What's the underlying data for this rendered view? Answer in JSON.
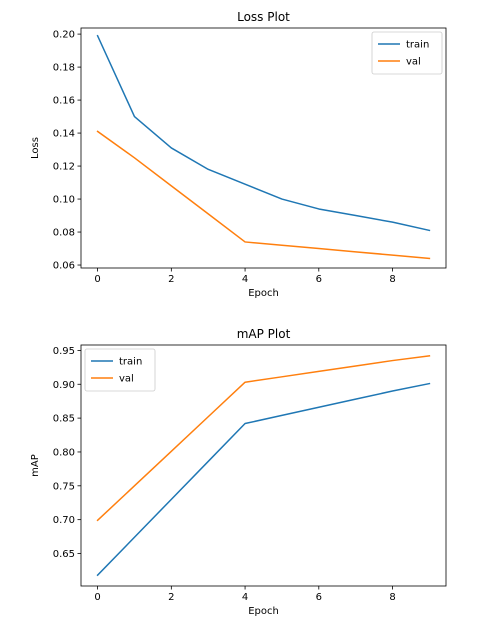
{
  "colors": {
    "train": "#1f77b4",
    "val": "#ff7f0e",
    "axes": "#000000",
    "legend_border": "#cccccc"
  },
  "chart_data": [
    {
      "type": "line",
      "title": "Loss Plot",
      "xlabel": "Epoch",
      "ylabel": "Loss",
      "x": [
        0,
        1,
        2,
        3,
        4,
        5,
        6,
        7,
        8,
        9
      ],
      "xlim": [
        -0.45,
        9.45
      ],
      "ylim": [
        0.0582,
        0.2037
      ],
      "xticks": [
        0,
        2,
        4,
        6,
        8
      ],
      "xtick_labels": [
        "0",
        "2",
        "4",
        "6",
        "8"
      ],
      "yticks": [
        0.06,
        0.08,
        0.1,
        0.12,
        0.14,
        0.16,
        0.18,
        0.2
      ],
      "ytick_labels": [
        "0.06",
        "0.08",
        "0.10",
        "0.12",
        "0.14",
        "0.16",
        "0.18",
        "0.20"
      ],
      "legend_position": "upper-right",
      "grid": false,
      "series": [
        {
          "name": "train",
          "values": [
            0.199,
            0.15,
            0.131,
            0.118,
            0.109,
            0.1,
            0.094,
            0.09,
            0.086,
            0.081
          ]
        },
        {
          "name": "val",
          "values": [
            0.141,
            0.125,
            0.108,
            0.091,
            0.074,
            0.072,
            0.07,
            0.068,
            0.066,
            0.064
          ]
        }
      ]
    },
    {
      "type": "line",
      "title": "mAP Plot",
      "xlabel": "Epoch",
      "ylabel": "mAP",
      "x": [
        0,
        1,
        2,
        3,
        4,
        5,
        6,
        7,
        8,
        9
      ],
      "xlim": [
        -0.45,
        9.45
      ],
      "ylim": [
        0.602,
        0.958
      ],
      "xticks": [
        0,
        2,
        4,
        6,
        8
      ],
      "xtick_labels": [
        "0",
        "2",
        "4",
        "6",
        "8"
      ],
      "yticks": [
        0.65,
        0.7,
        0.75,
        0.8,
        0.85,
        0.9,
        0.95
      ],
      "ytick_labels": [
        "0.65",
        "0.70",
        "0.75",
        "0.80",
        "0.85",
        "0.90",
        "0.95"
      ],
      "legend_position": "upper-left",
      "grid": false,
      "series": [
        {
          "name": "train",
          "values": [
            0.618,
            0.674,
            0.73,
            0.786,
            0.842,
            0.854,
            0.866,
            0.878,
            0.89,
            0.901
          ]
        },
        {
          "name": "val",
          "values": [
            0.699,
            0.75,
            0.801,
            0.852,
            0.903,
            0.911,
            0.919,
            0.927,
            0.935,
            0.942
          ]
        }
      ]
    }
  ]
}
